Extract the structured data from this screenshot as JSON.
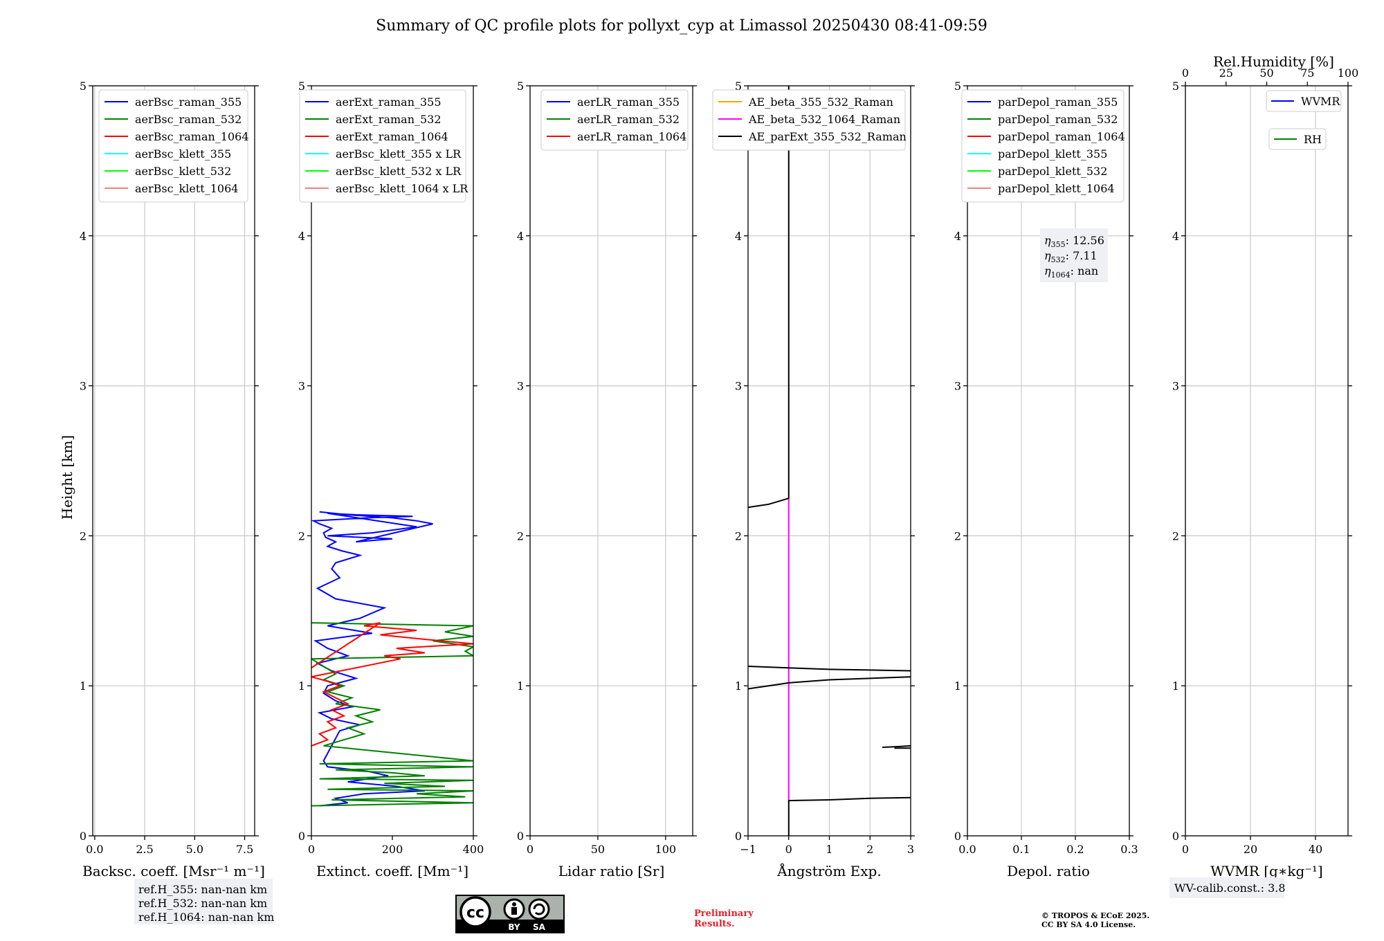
{
  "figure": {
    "title": "Summary of QC profile plots for pollyxt_cyp at Limassol 20250430 08:41-09:59",
    "ylabel": "Height [km]",
    "notes": {
      "refh_lines": [
        "ref.H_355: nan-nan km",
        "ref.H_532: nan-nan km",
        "ref.H_1064: nan-nan km"
      ],
      "wv_calib": "WV-calib.const.: 3.8",
      "preliminary": [
        "Preliminary",
        "Results."
      ],
      "copyright": [
        "© TROPOS & ECoE 2025.",
        "CC BY SA 4.0 License."
      ],
      "cc_badge": {
        "icon": "cc-by-sa-icon",
        "cc": "cc",
        "by": "BY",
        "sa": "SA"
      }
    },
    "colors": {
      "blue": "#0000ff",
      "green": "#008000",
      "red": "#ff0000",
      "cyan": "#00ffff",
      "lime": "#00ff00",
      "salmon": "#f08080",
      "orange": "#ffa500",
      "magenta": "#ff00ff",
      "black": "#000000",
      "preliminary": "#e8202a"
    }
  },
  "chart_data": [
    {
      "id": "bsc",
      "type": "line",
      "xlabel": "Backsc. coeff. [Msr⁻¹ m⁻¹]",
      "ylabel": "Height [km]",
      "xlim": [
        -0.1,
        8.0
      ],
      "ylim": [
        0,
        5
      ],
      "xticks": [
        0,
        2.5,
        5,
        7.5
      ],
      "xtick_labels": [
        "0.0",
        "2.5",
        "5.0",
        "7.5"
      ],
      "yticks": [
        0,
        1,
        2,
        3,
        4,
        5
      ],
      "ytick_labels": [
        "0",
        "1",
        "2",
        "3",
        "4",
        "5"
      ],
      "grid": true,
      "legend_position": "top-left",
      "legend": [
        {
          "label": "aerBsc_raman_355",
          "color": "#0000ff"
        },
        {
          "label": "aerBsc_raman_532",
          "color": "#008000"
        },
        {
          "label": "aerBsc_raman_1064",
          "color": "#ff0000"
        },
        {
          "label": "aerBsc_klett_355",
          "color": "#00ffff"
        },
        {
          "label": "aerBsc_klett_532",
          "color": "#00ff00"
        },
        {
          "label": "aerBsc_klett_1064",
          "color": "#f08080"
        }
      ],
      "series": []
    },
    {
      "id": "ext",
      "type": "line",
      "xlabel": "Extinct. coeff. [Mm⁻¹]",
      "ylabel": "Height [km]",
      "xlim": [
        0,
        400
      ],
      "ylim": [
        0,
        5
      ],
      "xticks": [
        0,
        200,
        400
      ],
      "xtick_labels": [
        "0",
        "200",
        "400"
      ],
      "yticks": [
        0,
        1,
        2,
        3,
        4,
        5
      ],
      "ytick_labels": [
        "0",
        "1",
        "2",
        "3",
        "4",
        "5"
      ],
      "grid": false,
      "legend_position": "top-left",
      "legend": [
        {
          "label": "aerExt_raman_355",
          "color": "#0000ff"
        },
        {
          "label": "aerExt_raman_532",
          "color": "#008000"
        },
        {
          "label": "aerExt_raman_1064",
          "color": "#ff0000"
        },
        {
          "label": "aerBsc_klett_355 x LR",
          "color": "#00ffff"
        },
        {
          "label": "aerBsc_klett_532 x LR",
          "color": "#00ff00"
        },
        {
          "label": "aerBsc_klett_1064 x LR",
          "color": "#f08080"
        }
      ],
      "series": [
        {
          "name": "aerExt_raman_355",
          "color": "#0000ff",
          "x": [
            20,
            90,
            60,
            130,
            280,
            210,
            90,
            190,
            140,
            40,
            30,
            70,
            120,
            50,
            20,
            100,
            60,
            30,
            40,
            110,
            50,
            15,
            90,
            40,
            10,
            150,
            40,
            120,
            180,
            60,
            15,
            70,
            50,
            60,
            120,
            75,
            40,
            60,
            35,
            30,
            50,
            20,
            5,
            140,
            250,
            110,
            40,
            260,
            150,
            40,
            200,
            110,
            300,
            260,
            200,
            90,
            20
          ],
          "y": [
            0.2,
            0.22,
            0.25,
            0.28,
            0.3,
            0.33,
            0.36,
            0.4,
            0.43,
            0.46,
            0.5,
            0.7,
            0.74,
            0.78,
            0.82,
            0.86,
            0.9,
            0.95,
            1.0,
            1.05,
            1.1,
            1.15,
            1.2,
            1.25,
            1.3,
            1.35,
            1.4,
            1.45,
            1.52,
            1.58,
            1.65,
            1.72,
            1.78,
            1.82,
            1.87,
            1.9,
            1.93,
            1.96,
            1.99,
            2.02,
            2.05,
            2.08,
            2.1,
            2.12,
            2.13,
            2.14,
            2.15,
            2.06,
            2.02,
            2.0,
            1.98,
            1.96,
            2.08,
            2.1,
            2.12,
            2.14,
            2.16
          ]
        },
        {
          "name": "aerExt_raman_532",
          "color": "#008000",
          "x": [
            0,
            400,
            50,
            380,
            260,
            400,
            40,
            330,
            180,
            400,
            20,
            280,
            200,
            60,
            400,
            20,
            400,
            30,
            80,
            130,
            90,
            150,
            110,
            170,
            60,
            100,
            40,
            80,
            30,
            60,
            0,
            400,
            380,
            400,
            300,
            400,
            330,
            400,
            0
          ],
          "y": [
            0.2,
            0.22,
            0.24,
            0.26,
            0.28,
            0.3,
            0.31,
            0.33,
            0.35,
            0.37,
            0.38,
            0.4,
            0.42,
            0.44,
            0.46,
            0.48,
            0.5,
            0.6,
            0.64,
            0.68,
            0.72,
            0.76,
            0.8,
            0.84,
            0.88,
            0.92,
            0.96,
            1.0,
            1.04,
            1.08,
            1.18,
            1.2,
            1.23,
            1.26,
            1.3,
            1.33,
            1.36,
            1.4,
            1.42
          ]
        },
        {
          "name": "aerExt_raman_1064",
          "color": "#ff0000",
          "x": [
            0,
            40,
            20,
            60,
            40,
            80,
            50,
            90,
            60,
            30,
            70,
            40,
            0,
            220,
            180,
            280,
            210,
            400,
            280,
            170,
            260,
            130,
            170,
            0
          ],
          "y": [
            0.6,
            0.64,
            0.68,
            0.72,
            0.76,
            0.8,
            0.84,
            0.88,
            0.92,
            0.96,
            1.0,
            1.03,
            1.06,
            1.18,
            1.2,
            1.22,
            1.25,
            1.28,
            1.31,
            1.34,
            1.37,
            1.4,
            1.42,
            1.12
          ]
        }
      ]
    },
    {
      "id": "lr",
      "type": "line",
      "xlabel": "Lidar ratio [Sr]",
      "ylabel": "Height [km]",
      "xlim": [
        0,
        120
      ],
      "ylim": [
        0,
        5
      ],
      "xticks": [
        0,
        50,
        100
      ],
      "xtick_labels": [
        "0",
        "50",
        "100"
      ],
      "yticks": [
        0,
        1,
        2,
        3,
        4,
        5
      ],
      "ytick_labels": [
        "0",
        "1",
        "2",
        "3",
        "4",
        "5"
      ],
      "grid": true,
      "legend_position": "top-left",
      "legend": [
        {
          "label": "aerLR_raman_355",
          "color": "#0000ff"
        },
        {
          "label": "aerLR_raman_532",
          "color": "#008000"
        },
        {
          "label": "aerLR_raman_1064",
          "color": "#ff0000"
        }
      ],
      "series": []
    },
    {
      "id": "ae",
      "type": "line",
      "xlabel": "Ångström Exp.",
      "ylabel": "Height [km]",
      "xlim": [
        -1,
        3
      ],
      "ylim": [
        0,
        5
      ],
      "xticks": [
        -1,
        0,
        1,
        2,
        3
      ],
      "xtick_labels": [
        "−1",
        "0",
        "1",
        "2",
        "3"
      ],
      "yticks": [
        0,
        1,
        2,
        3,
        4,
        5
      ],
      "ytick_labels": [
        "0",
        "1",
        "2",
        "3",
        "4",
        "5"
      ],
      "grid": true,
      "legend_position": "top-left",
      "legend": [
        {
          "label": "AE_beta_355_532_Raman",
          "color": "#ffa500"
        },
        {
          "label": "AE_beta_532_1064_Raman",
          "color": "#ff00ff"
        },
        {
          "label": "AE_parExt_355_532_Raman",
          "color": "#000000"
        }
      ],
      "series": [
        {
          "name": "AE_beta_532_1064_Raman",
          "color": "#ff00ff",
          "segments": [
            {
              "x": [
                0,
                0
              ],
              "y": [
                0.24,
                2.25
              ]
            }
          ]
        },
        {
          "name": "AE_parExt_355_532_Raman",
          "color": "#000000",
          "segments": [
            {
              "x": [
                0,
                0
              ],
              "y": [
                0.0,
                0.24
              ]
            },
            {
              "x": [
                0,
                1,
                2,
                3
              ],
              "y": [
                0.235,
                0.24,
                0.25,
                0.255
              ]
            },
            {
              "x": [
                2.3,
                2.7,
                3.0
              ],
              "y": [
                0.59,
                0.595,
                0.6
              ]
            },
            {
              "x": [
                2.6,
                3.0
              ],
              "y": [
                0.585,
                0.585
              ]
            },
            {
              "x": [
                -1,
                -0.5,
                0,
                1,
                2,
                3
              ],
              "y": [
                0.98,
                1.0,
                1.02,
                1.04,
                1.05,
                1.06
              ]
            },
            {
              "x": [
                -1,
                0,
                1,
                2,
                3
              ],
              "y": [
                1.13,
                1.12,
                1.11,
                1.105,
                1.1
              ]
            },
            {
              "x": [
                -1,
                -0.5,
                0
              ],
              "y": [
                2.19,
                2.21,
                2.25
              ]
            },
            {
              "x": [
                0,
                0
              ],
              "y": [
                2.25,
                5.0
              ]
            }
          ]
        }
      ]
    },
    {
      "id": "depol",
      "type": "line",
      "xlabel": "Depol. ratio",
      "ylabel": "Height [km]",
      "xlim": [
        0.0,
        0.3
      ],
      "ylim": [
        0,
        5
      ],
      "xticks": [
        0.0,
        0.1,
        0.2,
        0.3
      ],
      "xtick_labels": [
        "0.0",
        "0.1",
        "0.2",
        "0.3"
      ],
      "yticks": [
        0,
        1,
        2,
        3,
        4,
        5
      ],
      "ytick_labels": [
        "0",
        "1",
        "2",
        "3",
        "4",
        "5"
      ],
      "grid": true,
      "legend_position": "top-left",
      "legend": [
        {
          "label": "parDepol_raman_355",
          "color": "#0000ff"
        },
        {
          "label": "parDepol_raman_532",
          "color": "#008000"
        },
        {
          "label": "parDepol_raman_1064",
          "color": "#ff0000"
        },
        {
          "label": "parDepol_klett_355",
          "color": "#00ffff"
        },
        {
          "label": "parDepol_klett_532",
          "color": "#00ff00"
        },
        {
          "label": "parDepol_klett_1064",
          "color": "#f08080"
        }
      ],
      "annotation": [
        {
          "symbol": "η",
          "sub": "355",
          "value": ": 12.56"
        },
        {
          "symbol": "η",
          "sub": "532",
          "value": ": 7.11"
        },
        {
          "symbol": "η",
          "sub": "1064",
          "value": ": nan"
        }
      ],
      "series": []
    },
    {
      "id": "wv",
      "type": "line",
      "xlabel": "WVMR [g∗kg⁻¹]",
      "x2label": "Rel.Humidity [%]",
      "ylabel": "Height [km]",
      "xlim": [
        0,
        50
      ],
      "x2lim": [
        0,
        100
      ],
      "ylim": [
        0,
        5
      ],
      "xticks": [
        0,
        20,
        40
      ],
      "xtick_labels": [
        "0",
        "20",
        "40"
      ],
      "x2ticks": [
        0,
        25,
        50,
        75,
        100
      ],
      "x2tick_labels": [
        "0",
        "25",
        "50",
        "75",
        "100"
      ],
      "yticks": [
        0,
        1,
        2,
        3,
        4,
        5
      ],
      "ytick_labels": [
        "0",
        "1",
        "2",
        "3",
        "4",
        "5"
      ],
      "grid": true,
      "legend_position": "top-right",
      "legend": [
        {
          "label": "WVMR",
          "color": "#0000ff"
        },
        {
          "label": "RH",
          "color": "#008000"
        }
      ],
      "series": []
    }
  ]
}
